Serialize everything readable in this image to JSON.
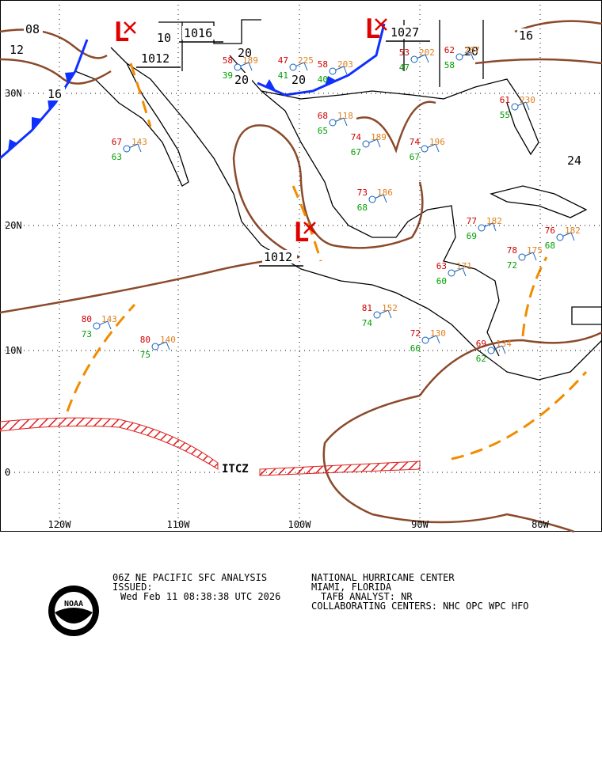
{
  "map": {
    "lon_labels": [
      "120W",
      "110W",
      "100W",
      "90W",
      "80W"
    ],
    "lat_labels": [
      "30N",
      "20N",
      "10N",
      "0"
    ],
    "isobar_labels": [
      "08",
      "12",
      "16",
      "1012",
      "10",
      "1016",
      "20",
      "20",
      "20",
      "1027",
      "16",
      "20",
      "24",
      "1012"
    ],
    "low_symbols": [
      "L",
      "L",
      "L"
    ],
    "itcz_label": "ITCZ",
    "stations": [
      {
        "t": 80,
        "td": 73,
        "p": 143
      },
      {
        "t": 80,
        "td": 75,
        "p": 140
      },
      {
        "t": 67,
        "td": 63,
        "p": 143
      },
      {
        "t": 73,
        "td": 68,
        "p": 186
      },
      {
        "t": 74,
        "td": 67,
        "p": 189
      },
      {
        "t": 74,
        "td": 67,
        "p": 196
      },
      {
        "t": 81,
        "td": 74,
        "p": 152
      },
      {
        "t": 72,
        "td": 66,
        "p": 130
      },
      {
        "t": 69,
        "td": 62,
        "p": 134
      },
      {
        "t": 77,
        "td": 69,
        "p": 182
      },
      {
        "t": 76,
        "td": 68,
        "p": 182
      },
      {
        "t": 78,
        "td": 72,
        "p": 175
      },
      {
        "t": 63,
        "td": 60,
        "p": 171
      },
      {
        "t": 58,
        "td": 39,
        "p": 189
      },
      {
        "t": 58,
        "td": 40,
        "p": 203
      },
      {
        "t": 53,
        "td": 47,
        "p": 202
      },
      {
        "t": 62,
        "td": 58,
        "p": 207
      },
      {
        "t": 47,
        "td": 41,
        "p": 225
      },
      {
        "t": 68,
        "td": 65,
        "p": 118
      },
      {
        "t": 61,
        "td": 55,
        "p": 230
      }
    ]
  },
  "footer": {
    "product": "06Z NE PACIFIC SFC ANALYSIS",
    "issued": "ISSUED:",
    "timestamp": "Wed Feb 11 08:38:38 UTC 2026",
    "center": "NATIONAL HURRICANE CENTER",
    "location": "MIAMI, FLORIDA",
    "analyst": "TAFB ANALYST: NR",
    "collab": "COLLABORATING CENTERS: NHC OPC WPC HFO",
    "logo": "NOAA"
  }
}
